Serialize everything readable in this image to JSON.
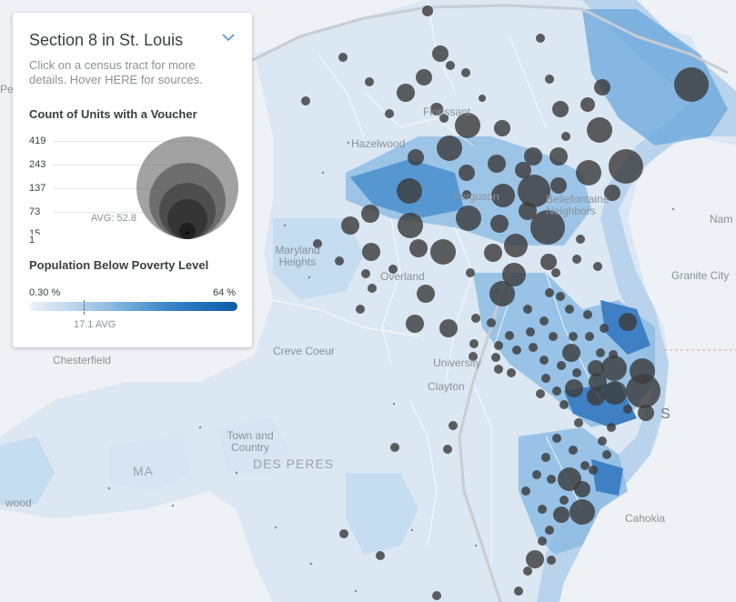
{
  "panel": {
    "title": "Section 8 in St. Louis",
    "subtitle": "Click on a census tract for more details. Hover HERE for sources.",
    "units_title": "Count of Units with a Voucher",
    "units_ticks": [
      "419",
      "243",
      "137",
      "73",
      "15",
      "1"
    ],
    "units_avg": "AVG: 52.8",
    "poverty_title": "Population Below Poverty Level",
    "poverty_min": "0.30 %",
    "poverty_max": "64 %",
    "poverty_avg": "17.1 AVG"
  },
  "map_labels": {
    "hazelwood": "Hazelwood",
    "florissant": "Florissant",
    "ferguson": "Ferguson",
    "bellefontaine": "Bellefontaine Neighbors",
    "maryland_heights": "Maryland Heights",
    "overland": "Overland",
    "creve_coeur": "Creve Coeur",
    "chesterfield": "Chesterfield",
    "university": "University",
    "clayton": "Clayton",
    "town_country": "Town and Country",
    "des_peres": "DES PERES",
    "ma": "MA",
    "wood": "wood",
    "granite_city": "Granite City",
    "nam": "Nam",
    "cahokia": "Cahokia",
    "st_louis_frag": "S",
    "pe": "Pe"
  },
  "colors": {
    "background": "#eef1f5",
    "tract_light": "#cfe1f1",
    "tract_mid": "#8cbbe3",
    "tract_dark": "#3f86c9",
    "bubble": "#3c3c3c",
    "panel_bg": "#ffffff"
  },
  "icons": {
    "collapse": "chevron-down-icon"
  }
}
